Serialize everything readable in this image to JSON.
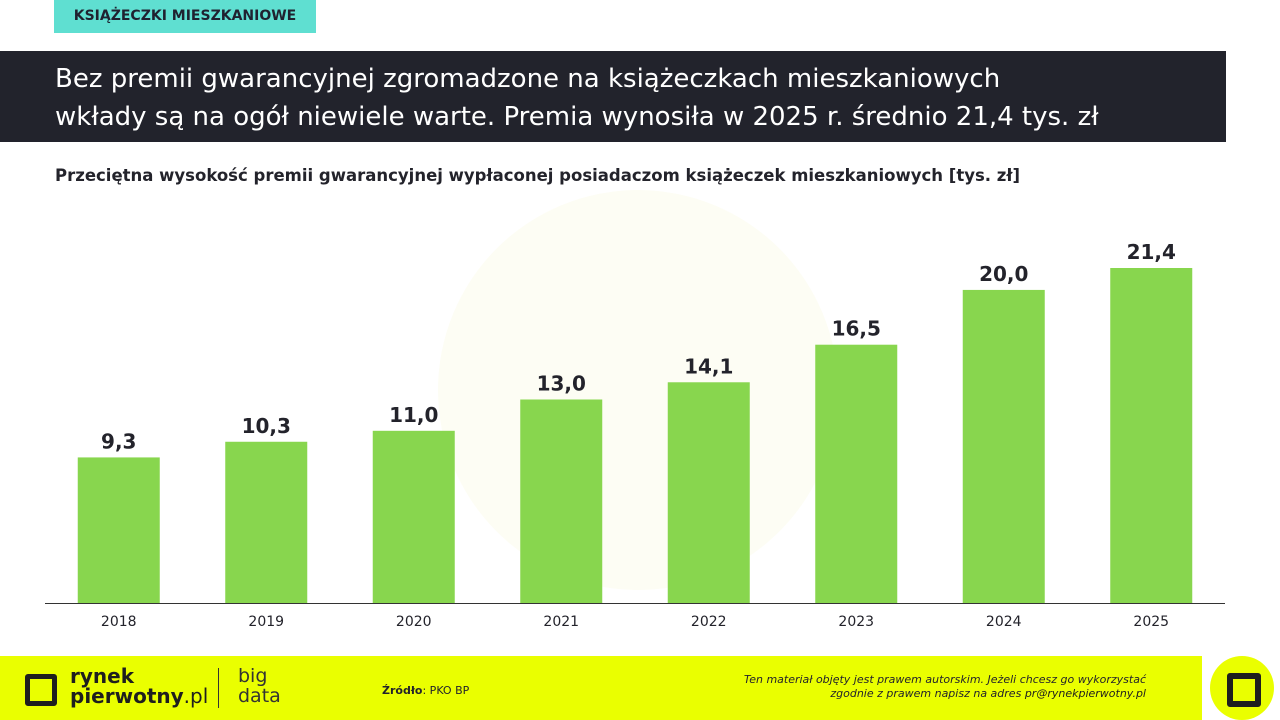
{
  "tag": "KSIĄŻECZKI MIESZKANIOWE",
  "headline": {
    "line1": "Bez premii gwarancyjnej zgromadzone na książeczkach mieszkaniowych",
    "line2": "wkłady są na ogół niewiele warte. Premia wynosiła w 2025 r. średnio 21,4 tys. zł"
  },
  "chart_data": {
    "type": "bar",
    "title": "Przeciętna wysokość premii gwarancyjnej wypłaconej posiadaczom książeczek mieszkaniowych [tys. zł]",
    "categories": [
      "2018",
      "2019",
      "2020",
      "2021",
      "2022",
      "2023",
      "2024",
      "2025"
    ],
    "values": [
      9.3,
      10.3,
      11.0,
      13.0,
      14.1,
      16.5,
      20.0,
      21.4
    ],
    "data_labels": [
      "9,3",
      "10,3",
      "11,0",
      "13,0",
      "14,1",
      "16,5",
      "20,0",
      "21,4"
    ],
    "ylim": [
      0,
      21.4
    ],
    "grid": false,
    "bar_color": "#88d64e"
  },
  "footer": {
    "brand1": "rynek",
    "brand2a": "pierwotny",
    "brand2b": ".pl",
    "big1": "big",
    "big2": "data",
    "source_label": "Źródło",
    "source_value": ": PKO BP",
    "copy1": "Ten materiał objęty jest prawem autorskim. Jeżeli chcesz go wykorzystać",
    "copy2": "zgodnie z prawem napisz na adres ",
    "email": "pr@rynekpierwotny.pl"
  }
}
